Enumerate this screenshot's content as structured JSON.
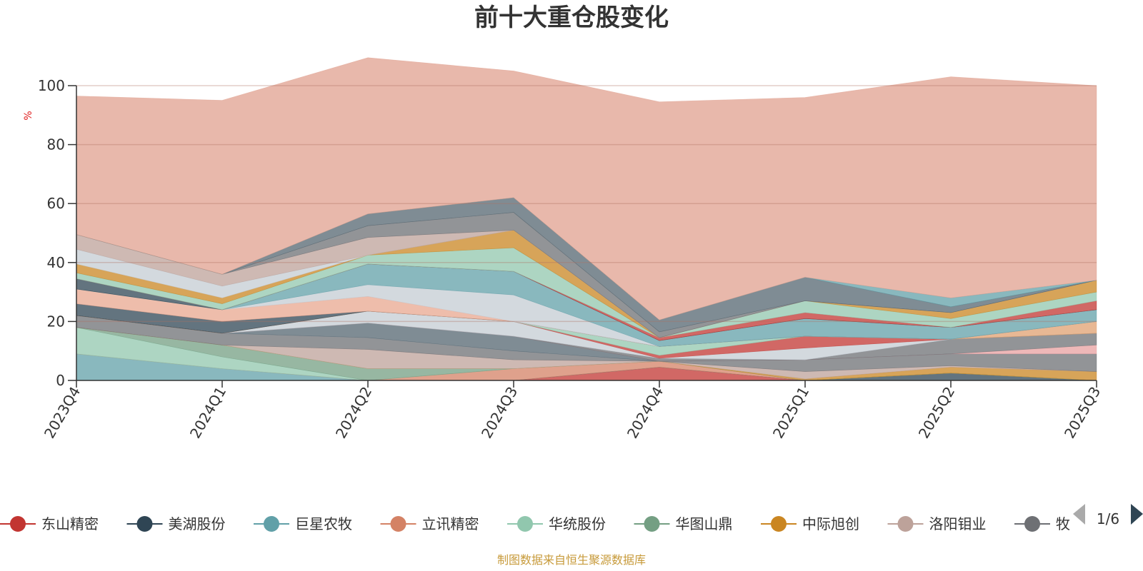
{
  "chart_data": {
    "type": "area",
    "stacked": true,
    "title": "前十大重仓股变化",
    "ylabel": "%",
    "ylim": [
      0,
      100
    ],
    "yticks": [
      0,
      20,
      40,
      60,
      80,
      100
    ],
    "categories": [
      "2023Q4",
      "2024Q1",
      "2024Q2",
      "2024Q3",
      "2024Q4",
      "2025Q1",
      "2025Q2",
      "2025Q3"
    ],
    "series": [
      {
        "name": "东山精密",
        "color": "#c23531",
        "values": [
          0,
          0,
          0,
          0,
          4.5,
          0,
          0,
          0
        ]
      },
      {
        "name": "美湖股份",
        "color": "#2f4554",
        "values": [
          0,
          0,
          0,
          0,
          0,
          0,
          2.5,
          0
        ]
      },
      {
        "name": "巨星农牧",
        "color": "#61a0a8",
        "values": [
          9,
          4,
          0,
          0,
          0,
          0,
          0,
          0
        ]
      },
      {
        "name": "立讯精密",
        "color": "#d48265",
        "values": [
          0,
          0,
          0,
          4,
          2,
          0,
          0,
          0
        ]
      },
      {
        "name": "华统股份",
        "color": "#91c7ae",
        "values": [
          9,
          4,
          0,
          0,
          0,
          0,
          0,
          0
        ]
      },
      {
        "name": "华图山鼎",
        "color": "#749f83",
        "values": [
          0,
          4,
          4,
          0,
          0,
          0,
          0,
          0
        ]
      },
      {
        "name": "中际旭创",
        "color": "#ca8622",
        "values": [
          0,
          0,
          0,
          0,
          0,
          0.5,
          2,
          3
        ]
      },
      {
        "name": "洛阳钼业",
        "color": "#bda29a",
        "values": [
          0,
          0,
          6.5,
          3,
          0,
          2.5,
          0.5,
          0
        ]
      },
      {
        "name": "牧原股份",
        "color": "#6e7074",
        "values": [
          4,
          4,
          4,
          3,
          0,
          4,
          4,
          6
        ]
      },
      {
        "name": "",
        "color": "#c4ccd3",
        "values": [
          0,
          0,
          0,
          0,
          0,
          0,
          0,
          0
        ]
      },
      {
        "name": "",
        "color": "#546570",
        "values": [
          0,
          0,
          5,
          5,
          0,
          0,
          0,
          0
        ]
      },
      {
        "name": "",
        "color": "#e8a0a0",
        "values": [
          0,
          0,
          0,
          0,
          0,
          0,
          0,
          3
        ]
      },
      {
        "name": "",
        "color": "#6e7074",
        "values": [
          0,
          0,
          0,
          0,
          1,
          0,
          5,
          4
        ]
      },
      {
        "name": "",
        "color": "#c4ccd3",
        "values": [
          0,
          0,
          4,
          5,
          0,
          4,
          0,
          0
        ]
      },
      {
        "name": "",
        "color": "#c23531",
        "values": [
          0,
          0,
          0,
          0,
          1,
          4,
          0,
          0
        ]
      },
      {
        "name": "",
        "color": "#91c7ae",
        "values": [
          0,
          0,
          0,
          0,
          3,
          0,
          0,
          0
        ]
      },
      {
        "name": "",
        "color": "#e0a070",
        "values": [
          0,
          0,
          0,
          0,
          0,
          0,
          0,
          4
        ]
      },
      {
        "name": "",
        "color": "#2f4554",
        "values": [
          4,
          4,
          0,
          0,
          0,
          0,
          0,
          0
        ]
      },
      {
        "name": "",
        "color": "#e8a78f",
        "values": [
          5,
          4,
          5,
          0,
          0,
          0,
          0,
          0
        ]
      },
      {
        "name": "",
        "color": "#c4ccd3",
        "values": [
          0,
          0,
          4,
          9,
          0,
          0,
          0,
          0
        ]
      },
      {
        "name": "",
        "color": "#61a0a8",
        "values": [
          0,
          0,
          7,
          8,
          2,
          6,
          4,
          4
        ]
      },
      {
        "name": "",
        "color": "#2f4554",
        "values": [
          3.5,
          0,
          0,
          0,
          0,
          0,
          0,
          0
        ]
      },
      {
        "name": "",
        "color": "#c23531",
        "values": [
          0,
          0,
          0,
          0,
          1,
          2,
          0,
          3
        ]
      },
      {
        "name": "",
        "color": "#91c7ae",
        "values": [
          2,
          2,
          3,
          8,
          0,
          4,
          3,
          3
        ]
      },
      {
        "name": "",
        "color": "#ca8622",
        "values": [
          3,
          2,
          0,
          6,
          0,
          0,
          2,
          4
        ]
      },
      {
        "name": "",
        "color": "#c4ccd3",
        "values": [
          5,
          4,
          0,
          0,
          0,
          0,
          0,
          0
        ]
      },
      {
        "name": "",
        "color": "#bda29a",
        "values": [
          5,
          4,
          6,
          0,
          0,
          0,
          0,
          0
        ]
      },
      {
        "name": "",
        "color": "#6e7074",
        "values": [
          0,
          0,
          4,
          6,
          2,
          0,
          0,
          0
        ]
      },
      {
        "name": "",
        "color": "#546570",
        "values": [
          0,
          0,
          4,
          5,
          4,
          8,
          2,
          0
        ]
      },
      {
        "name": "",
        "color": "#61a0a8",
        "values": [
          0,
          0,
          0,
          0,
          0,
          0,
          3,
          0
        ]
      },
      {
        "name": "",
        "color": "#e0a08f",
        "values": [
          47,
          59,
          53,
          43,
          74,
          61,
          75,
          66
        ]
      }
    ],
    "legend_visible_count": 9,
    "legend_last_truncated": "牧"
  },
  "legend": {
    "page_indicator": "1/6"
  },
  "source_note": "制图数据来自恒生聚源数据库"
}
